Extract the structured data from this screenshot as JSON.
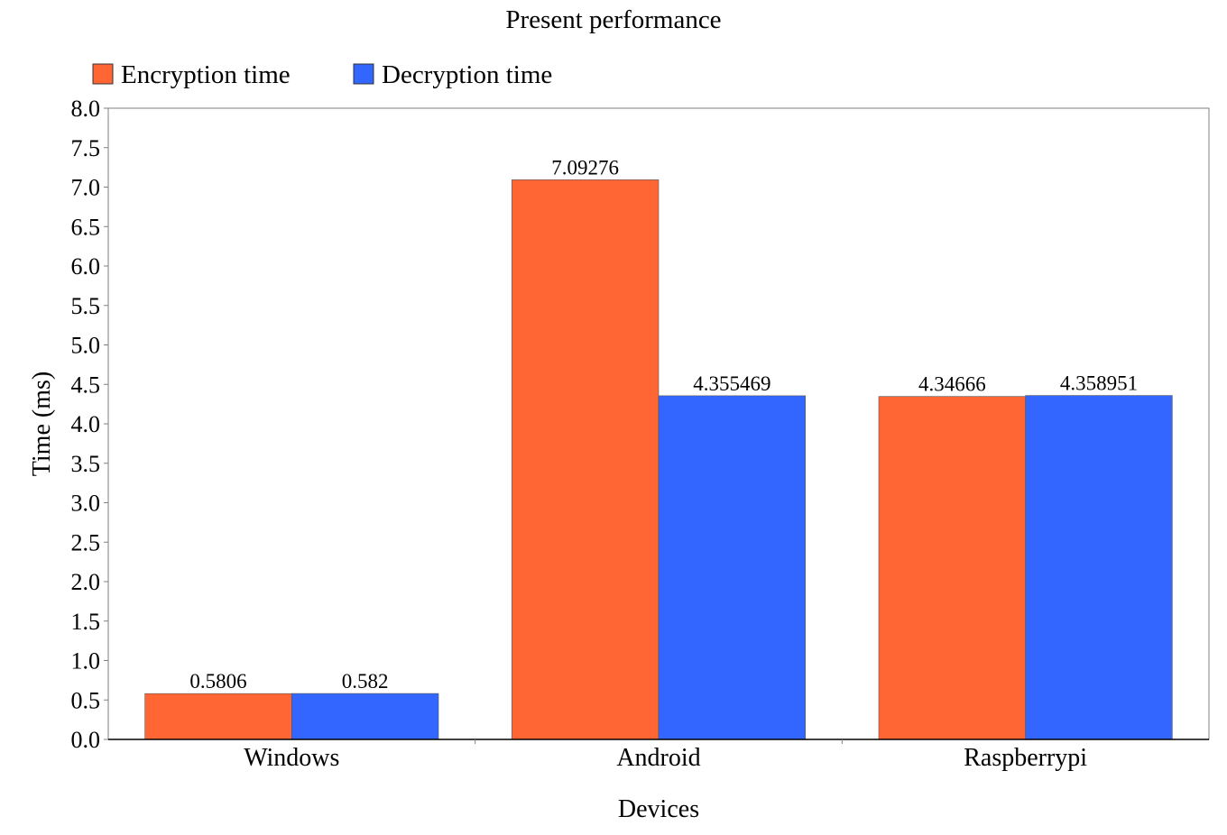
{
  "chart_data": {
    "type": "bar",
    "title": "Present performance",
    "xlabel": "Devices",
    "ylabel": "Time (ms)",
    "categories": [
      "Windows",
      "Android",
      "Raspberrypi"
    ],
    "series": [
      {
        "name": "Encryption time",
        "color": "#ff6633",
        "values": [
          0.5806,
          7.09276,
          4.34666
        ],
        "labels": [
          "0.5806",
          "7.09276",
          "4.34666"
        ]
      },
      {
        "name": "Decryption time",
        "color": "#3366ff",
        "values": [
          0.582,
          4.355469,
          4.358951
        ],
        "labels": [
          "0.582",
          "4.355469",
          "4.358951"
        ]
      }
    ],
    "ylim": [
      0,
      8.0
    ],
    "yticks": [
      "0.0",
      "0.5",
      "1.0",
      "1.5",
      "2.0",
      "2.5",
      "3.0",
      "3.5",
      "4.0",
      "4.5",
      "5.0",
      "5.5",
      "6.0",
      "6.5",
      "7.0",
      "7.5",
      "8.0"
    ],
    "grid": false,
    "legend": "top-left"
  }
}
